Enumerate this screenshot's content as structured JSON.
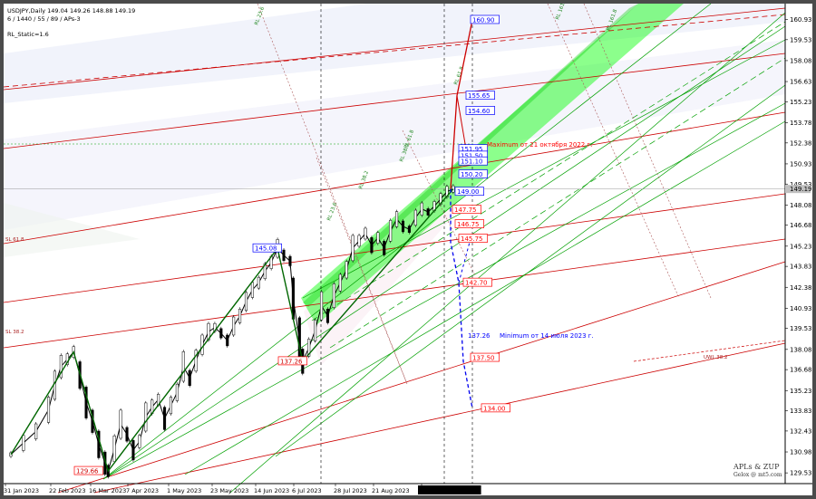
{
  "header": {
    "symbol_line": "USDJPY,Daily  149.04 149.26 148.88 149.19",
    "params_line": "6 / 1440 / 55 / 89 / APs-3",
    "static_line": "RL_Static=1.6"
  },
  "watermark": {
    "line1": "APLs & ZUP",
    "line2": "Gelox @ mt5.com"
  },
  "colors": {
    "background": "#ffffff",
    "up_fill": "#00ff00",
    "price_line": "#000000",
    "label_blue": "#0000ff",
    "label_red": "#ff0000",
    "target_red": "#cc0000",
    "fork_green": "#00a000"
  },
  "chart_data": {
    "type": "line",
    "symbol": "USDJPY",
    "timeframe": "Daily",
    "ohlc_last": {
      "open": 149.04,
      "high": 149.26,
      "low": 148.88,
      "close": 149.19
    },
    "current_price": "149.19",
    "y_ticks": [
      "160.93",
      "159.53",
      "158.08",
      "156.63",
      "155.23",
      "153.78",
      "152.38",
      "150.93",
      "149.53",
      "148.08",
      "146.68",
      "145.23",
      "143.83",
      "142.38",
      "140.93",
      "139.53",
      "138.08",
      "136.68",
      "135.23",
      "133.83",
      "132.43",
      "130.98",
      "129.53"
    ],
    "ylim": [
      129.1,
      161.4
    ],
    "x_ticks": [
      "31 Jan 2023",
      "22 Feb 2023",
      "16 Mar 2023",
      "7 Apr 2023",
      "1 May 2023",
      "23 May 2023",
      "14 Jun 2023",
      "6 Jul 2023",
      "28 Jul 2023",
      "21 Aug 2023",
      "2023.09.27 15:58"
    ],
    "series": [
      {
        "points": [
          [
            0,
            130.8
          ],
          [
            4,
            131.6
          ],
          [
            8,
            132.4
          ],
          [
            12,
            133.9
          ],
          [
            14,
            135.6
          ],
          [
            16,
            136.9
          ],
          [
            18,
            137.4
          ],
          [
            20,
            137.9
          ],
          [
            22,
            136.3
          ],
          [
            24,
            134.4
          ],
          [
            26,
            133.1
          ],
          [
            28,
            131.5
          ],
          [
            30,
            130.2
          ],
          [
            31,
            129.66
          ],
          [
            33,
            131.2
          ],
          [
            35,
            132.9
          ],
          [
            37,
            132.2
          ],
          [
            39,
            131.1
          ],
          [
            41,
            131.7
          ],
          [
            43,
            133.4
          ],
          [
            45,
            134.1
          ],
          [
            47,
            134.6
          ],
          [
            49,
            133.3
          ],
          [
            51,
            134.2
          ],
          [
            53,
            135.1
          ],
          [
            55,
            136.9
          ],
          [
            57,
            136.1
          ],
          [
            59,
            137.3
          ],
          [
            61,
            138.4
          ],
          [
            63,
            139.3
          ],
          [
            65,
            139.6
          ],
          [
            67,
            139.2
          ],
          [
            69,
            138.7
          ],
          [
            71,
            139.7
          ],
          [
            73,
            140.4
          ],
          [
            75,
            141.4
          ],
          [
            77,
            142.2
          ],
          [
            79,
            142.7
          ],
          [
            81,
            143.5
          ],
          [
            83,
            144.1
          ],
          [
            85,
            145.08
          ],
          [
            87,
            144.6
          ],
          [
            89,
            144.2
          ],
          [
            90,
            141.6
          ],
          [
            92,
            138.7
          ],
          [
            93,
            137.26
          ],
          [
            95,
            138.2
          ],
          [
            97,
            139.4
          ],
          [
            99,
            141.1
          ],
          [
            101,
            140.4
          ],
          [
            103,
            141.8
          ],
          [
            105,
            142.7
          ],
          [
            107,
            143.6
          ],
          [
            109,
            145.1
          ],
          [
            111,
            145.6
          ],
          [
            113,
            146.1
          ],
          [
            115,
            145.3
          ],
          [
            117,
            145.8
          ],
          [
            119,
            145.1
          ],
          [
            121,
            146.3
          ],
          [
            123,
            147.1
          ],
          [
            125,
            146.6
          ],
          [
            127,
            146.4
          ],
          [
            129,
            147.2
          ],
          [
            131,
            147.8
          ],
          [
            133,
            147.6
          ],
          [
            135,
            148.0
          ],
          [
            137,
            148.5
          ],
          [
            139,
            149.0
          ],
          [
            141,
            149.19
          ]
        ]
      }
    ],
    "price_labels_blue": [
      "160.90",
      "155.65",
      "154.60",
      "151.95",
      "151.50",
      "151.10",
      "150.20",
      "149.00",
      "145.08"
    ],
    "price_labels_red": [
      "147.75",
      "146.75",
      "145.75",
      "142.70",
      "137.50",
      "134.00",
      "129.66",
      "137.26"
    ],
    "standalone_value": "137.26",
    "annotations": {
      "max_note": "Maximum от 21 октября 2022 г.",
      "min_note": "Minimum от 14 июля 2023 г."
    },
    "line_labels": [
      "SL 61.8",
      "SL 38.2",
      "UWL 38.2",
      "RL 23.6",
      "RL 38.2",
      "RL 61.8",
      "RL 161.8",
      "RL 23.6",
      "RL 38.2",
      "RL 61.8",
      "RL 161.8"
    ],
    "grid": false
  }
}
